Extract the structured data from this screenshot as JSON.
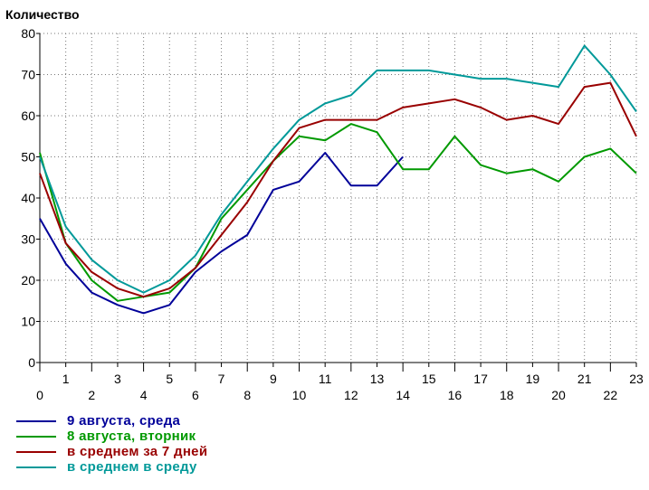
{
  "chart_data": {
    "type": "line",
    "title": "Количество",
    "xlabel": "",
    "ylabel": "",
    "x": [
      0,
      1,
      2,
      3,
      4,
      5,
      6,
      7,
      8,
      9,
      10,
      11,
      12,
      13,
      14,
      15,
      16,
      17,
      18,
      19,
      20,
      21,
      22,
      23
    ],
    "xlim": [
      0,
      23
    ],
    "ylim": [
      0,
      80
    ],
    "yticks": [
      0,
      10,
      20,
      30,
      40,
      50,
      60,
      70,
      80
    ],
    "grid": true,
    "legend_position": "bottom-left",
    "series": [
      {
        "name": "9 августа, среда",
        "color": "#000099",
        "values": [
          35,
          24,
          17,
          14,
          12,
          14,
          22,
          27,
          31,
          42,
          44,
          51,
          43,
          43,
          50,
          null,
          null,
          null,
          null,
          null,
          null,
          null,
          null,
          null
        ]
      },
      {
        "name": "8 августа, вторник",
        "color": "#009900",
        "values": [
          51,
          29,
          20,
          15,
          16,
          17,
          23,
          35,
          42,
          49,
          55,
          54,
          58,
          56,
          47,
          47,
          55,
          48,
          46,
          47,
          44,
          50,
          52,
          46
        ]
      },
      {
        "name": "в среднем за 7 дней",
        "color": "#990000",
        "values": [
          46,
          29,
          22,
          18,
          16,
          18,
          23,
          31,
          39,
          49,
          57,
          59,
          59,
          59,
          62,
          63,
          64,
          62,
          59,
          60,
          58,
          67,
          68,
          55
        ]
      },
      {
        "name": "в среднем в среду",
        "color": "#009999",
        "values": [
          50,
          33,
          25,
          20,
          17,
          20,
          26,
          36,
          44,
          52,
          59,
          63,
          65,
          71,
          71,
          71,
          70,
          69,
          69,
          68,
          67,
          77,
          70,
          61
        ]
      }
    ]
  }
}
